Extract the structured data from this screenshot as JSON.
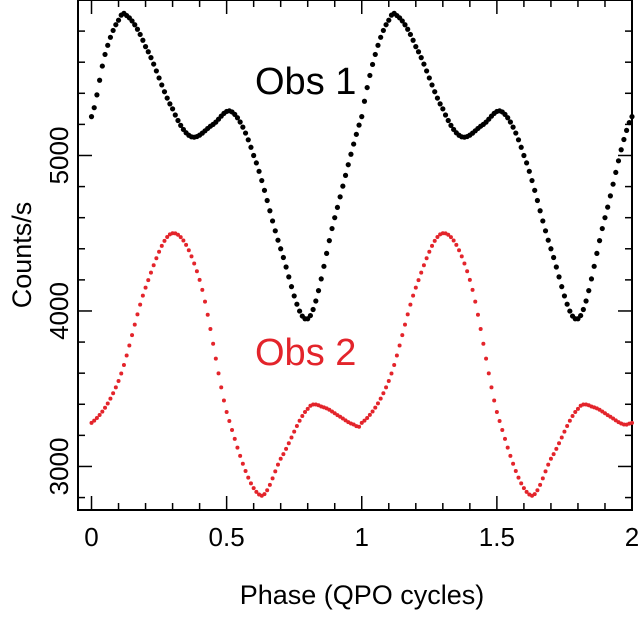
{
  "chart_data": {
    "type": "scatter",
    "xlabel": "Phase (QPO cycles)",
    "ylabel": "Counts/s",
    "xlim": [
      -0.05,
      2.0
    ],
    "ylim": [
      2720,
      6000
    ],
    "x_ticks": [
      0,
      0.5,
      1,
      1.5,
      2
    ],
    "x_tick_labels": [
      "0",
      "0.5",
      "1",
      "1.5",
      "2"
    ],
    "y_ticks": [
      3000,
      4000,
      5000
    ],
    "y_tick_labels": [
      "3000",
      "4000",
      "5000"
    ],
    "grid": false,
    "series": [
      {
        "name": "Obs 1",
        "color": "#000000",
        "x": [
          0.0,
          0.05,
          0.1,
          0.13,
          0.2,
          0.3,
          0.37,
          0.45,
          0.52,
          0.6,
          0.7,
          0.8,
          0.9,
          1.0,
          1.05,
          1.1,
          1.13,
          1.2,
          1.3,
          1.37,
          1.45,
          1.52,
          1.6,
          1.7,
          1.8,
          1.9,
          2.0
        ],
        "y": [
          5250,
          5650,
          5870,
          5900,
          5700,
          5300,
          5120,
          5200,
          5280,
          5000,
          4400,
          3950,
          4600,
          5250,
          5650,
          5870,
          5900,
          5700,
          5300,
          5120,
          5200,
          5280,
          5000,
          4400,
          3950,
          4600,
          5250
        ]
      },
      {
        "name": "Obs 2",
        "color": "#e3242b",
        "x": [
          0.0,
          0.1,
          0.2,
          0.3,
          0.4,
          0.5,
          0.62,
          0.7,
          0.8,
          0.86,
          0.92,
          0.97,
          1.0,
          1.1,
          1.2,
          1.3,
          1.4,
          1.5,
          1.62,
          1.7,
          1.8,
          1.86,
          1.92,
          1.97,
          2.0
        ],
        "y": [
          3280,
          3550,
          4150,
          4500,
          4200,
          3350,
          2820,
          3050,
          3370,
          3380,
          3320,
          3270,
          3280,
          3550,
          4150,
          4500,
          4200,
          3350,
          2820,
          3050,
          3370,
          3380,
          3320,
          3270,
          3280
        ]
      }
    ]
  }
}
